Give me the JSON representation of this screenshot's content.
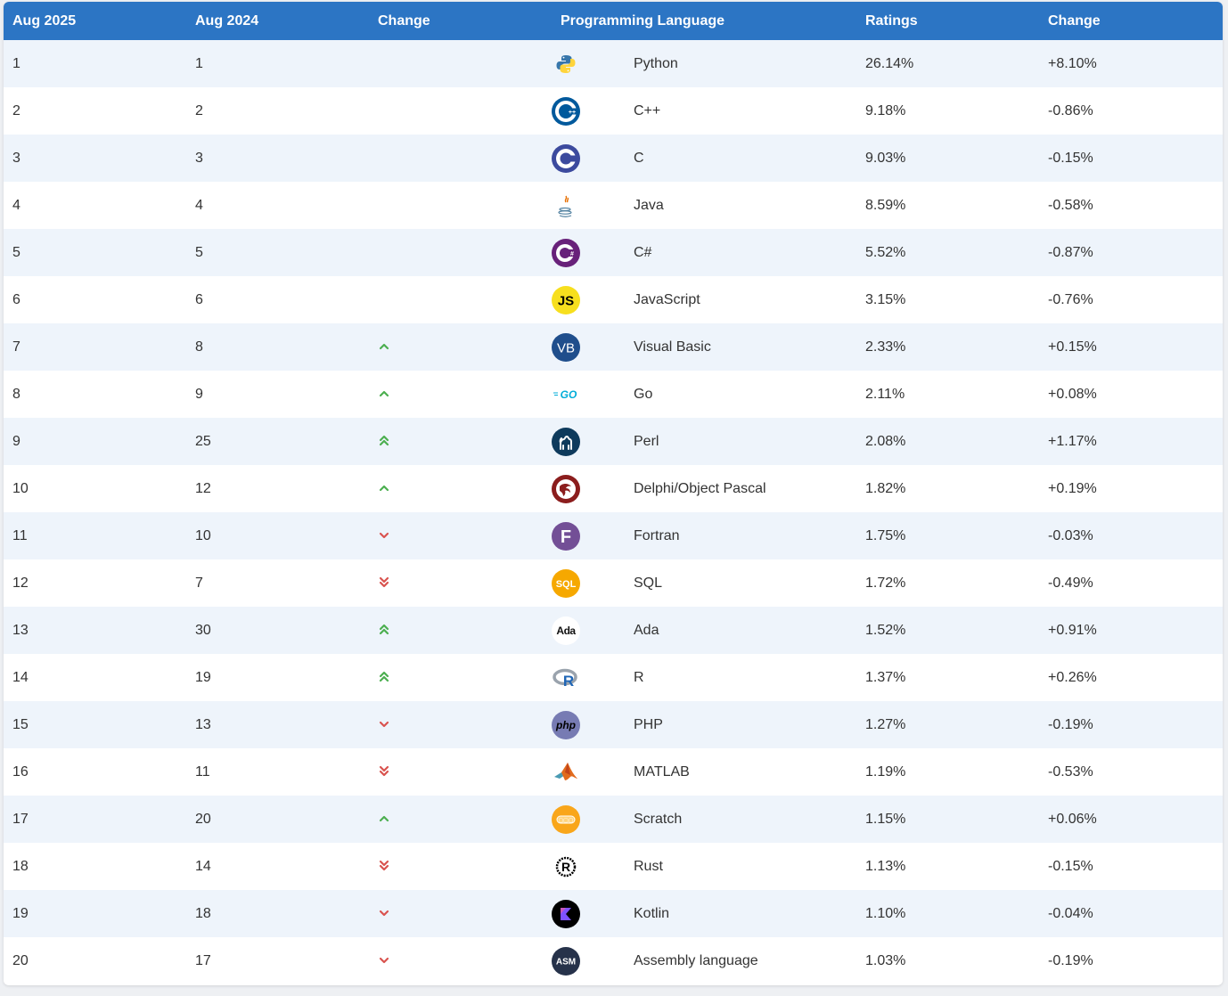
{
  "header": {
    "col_aug2025": "Aug 2025",
    "col_aug2024": "Aug 2024",
    "col_change": "Change",
    "col_language": "Programming Language",
    "col_ratings": "Ratings",
    "col_change2": "Change"
  },
  "colors": {
    "header_bg": "#2c75c4",
    "row_alt": "#eef4fb",
    "up": "#4caf50",
    "down": "#d9534f"
  },
  "rows": [
    {
      "rank": "1",
      "prev": "1",
      "trend": "none",
      "logo": "python-icon",
      "name": "Python",
      "rating": "26.14%",
      "change": "+8.10%"
    },
    {
      "rank": "2",
      "prev": "2",
      "trend": "none",
      "logo": "cpp-icon",
      "name": "C++",
      "rating": "9.18%",
      "change": "-0.86%"
    },
    {
      "rank": "3",
      "prev": "3",
      "trend": "none",
      "logo": "c-icon",
      "name": "C",
      "rating": "9.03%",
      "change": "-0.15%"
    },
    {
      "rank": "4",
      "prev": "4",
      "trend": "none",
      "logo": "java-icon",
      "name": "Java",
      "rating": "8.59%",
      "change": "-0.58%"
    },
    {
      "rank": "5",
      "prev": "5",
      "trend": "none",
      "logo": "csharp-icon",
      "name": "C#",
      "rating": "5.52%",
      "change": "-0.87%"
    },
    {
      "rank": "6",
      "prev": "6",
      "trend": "none",
      "logo": "javascript-icon",
      "name": "JavaScript",
      "rating": "3.15%",
      "change": "-0.76%"
    },
    {
      "rank": "7",
      "prev": "8",
      "trend": "up",
      "logo": "visual-basic-icon",
      "name": "Visual Basic",
      "rating": "2.33%",
      "change": "+0.15%"
    },
    {
      "rank": "8",
      "prev": "9",
      "trend": "up",
      "logo": "go-icon",
      "name": "Go",
      "rating": "2.11%",
      "change": "+0.08%"
    },
    {
      "rank": "9",
      "prev": "25",
      "trend": "upup",
      "logo": "perl-icon",
      "name": "Perl",
      "rating": "2.08%",
      "change": "+1.17%"
    },
    {
      "rank": "10",
      "prev": "12",
      "trend": "up",
      "logo": "delphi-icon",
      "name": "Delphi/Object Pascal",
      "rating": "1.82%",
      "change": "+0.19%"
    },
    {
      "rank": "11",
      "prev": "10",
      "trend": "down",
      "logo": "fortran-icon",
      "name": "Fortran",
      "rating": "1.75%",
      "change": "-0.03%"
    },
    {
      "rank": "12",
      "prev": "7",
      "trend": "downdown",
      "logo": "sql-icon",
      "name": "SQL",
      "rating": "1.72%",
      "change": "-0.49%"
    },
    {
      "rank": "13",
      "prev": "30",
      "trend": "upup",
      "logo": "ada-icon",
      "name": "Ada",
      "rating": "1.52%",
      "change": "+0.91%"
    },
    {
      "rank": "14",
      "prev": "19",
      "trend": "upup",
      "logo": "r-icon",
      "name": "R",
      "rating": "1.37%",
      "change": "+0.26%"
    },
    {
      "rank": "15",
      "prev": "13",
      "trend": "down",
      "logo": "php-icon",
      "name": "PHP",
      "rating": "1.27%",
      "change": "-0.19%"
    },
    {
      "rank": "16",
      "prev": "11",
      "trend": "downdown",
      "logo": "matlab-icon",
      "name": "MATLAB",
      "rating": "1.19%",
      "change": "-0.53%"
    },
    {
      "rank": "17",
      "prev": "20",
      "trend": "up",
      "logo": "scratch-icon",
      "name": "Scratch",
      "rating": "1.15%",
      "change": "+0.06%"
    },
    {
      "rank": "18",
      "prev": "14",
      "trend": "downdown",
      "logo": "rust-icon",
      "name": "Rust",
      "rating": "1.13%",
      "change": "-0.15%"
    },
    {
      "rank": "19",
      "prev": "18",
      "trend": "down",
      "logo": "kotlin-icon",
      "name": "Kotlin",
      "rating": "1.10%",
      "change": "-0.04%"
    },
    {
      "rank": "20",
      "prev": "17",
      "trend": "down",
      "logo": "assembly-icon",
      "name": "Assembly language",
      "rating": "1.03%",
      "change": "-0.19%"
    }
  ],
  "logo_text": {
    "javascript-icon": "JS",
    "visual-basic-icon": "VB",
    "go-icon": "GO",
    "fortran-icon": "F",
    "sql-icon": "SQL",
    "ada-icon": "Ada",
    "r-icon": "R",
    "php-icon": "php",
    "rust-icon": "R",
    "assembly-icon": "ASM",
    "c-icon": "C",
    "cpp-icon": "C",
    "csharp-icon": "C"
  }
}
